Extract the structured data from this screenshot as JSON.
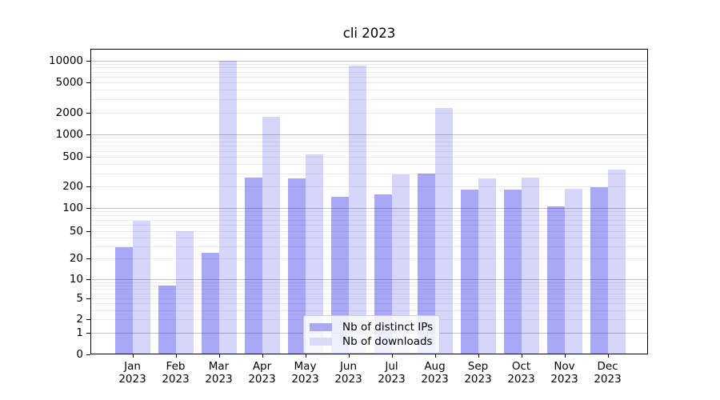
{
  "chart_data": {
    "type": "bar",
    "title": "cli 2023",
    "categories": [
      "Jan",
      "Feb",
      "Mar",
      "Apr",
      "May",
      "Jun",
      "Jul",
      "Aug",
      "Sep",
      "Oct",
      "Nov",
      "Dec"
    ],
    "year_label": "2023",
    "series": [
      {
        "name": "Nb of distinct IPs",
        "values": [
          29,
          8,
          24,
          260,
          255,
          145,
          155,
          300,
          180,
          182,
          105,
          196
        ]
      },
      {
        "name": "Nb of downloads",
        "values": [
          68,
          50,
          9900,
          1750,
          540,
          8450,
          290,
          2320,
          255,
          260,
          185,
          340
        ]
      }
    ],
    "yscale": "symlog",
    "yticks": [
      0,
      1,
      2,
      5,
      10,
      20,
      50,
      100,
      200,
      500,
      1000,
      2000,
      5000,
      10000
    ],
    "ylim": [
      0,
      14000
    ],
    "grid": true,
    "legend_position": "lower center inside",
    "colors": {
      "bar_base": "#0000e6",
      "ips_alpha": 0.34,
      "downloads_alpha": 0.16,
      "ips_solid": "#aaaaf4",
      "downloads_solid": "#d9d9f8",
      "grid_major": "#c2c2c2",
      "grid_minor": "#ebebeb",
      "axis": "#000000",
      "text": "#000000"
    }
  }
}
